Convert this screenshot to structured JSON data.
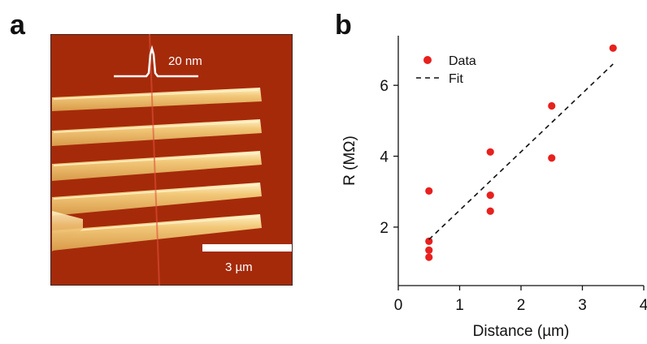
{
  "panels": {
    "a": {
      "label": "a",
      "profile_label": "20 nm",
      "scalebar_label": "3 µm",
      "colors": {
        "background": "#a52a0a",
        "wire": "#f2c879",
        "wire_highlight": "#fff3c8",
        "line": "#ffffff"
      },
      "wire_count": 5
    },
    "b": {
      "label": "b"
    }
  },
  "chart_data": {
    "type": "scatter",
    "xlabel": "Distance (µm)",
    "ylabel": "R (MΩ)",
    "xlim": [
      0,
      4
    ],
    "ylim": [
      0.35,
      7.4
    ],
    "xticks": [
      0,
      1,
      2,
      3,
      4
    ],
    "yticks": [
      2,
      4,
      6
    ],
    "grid": false,
    "legend_position": "top-left",
    "series": [
      {
        "name": "Data",
        "kind": "points",
        "color": "#e8201e",
        "points": [
          [
            0.5,
            3.02
          ],
          [
            0.5,
            1.6
          ],
          [
            0.5,
            1.35
          ],
          [
            0.5,
            1.15
          ],
          [
            1.5,
            4.12
          ],
          [
            1.5,
            2.9
          ],
          [
            1.5,
            2.45
          ],
          [
            2.5,
            5.42
          ],
          [
            2.5,
            3.95
          ],
          [
            3.5,
            7.05
          ]
        ]
      },
      {
        "name": "Fit",
        "kind": "dashed-line",
        "color": "#111111",
        "points": [
          [
            0.5,
            1.65
          ],
          [
            3.5,
            6.6
          ]
        ]
      }
    ]
  }
}
